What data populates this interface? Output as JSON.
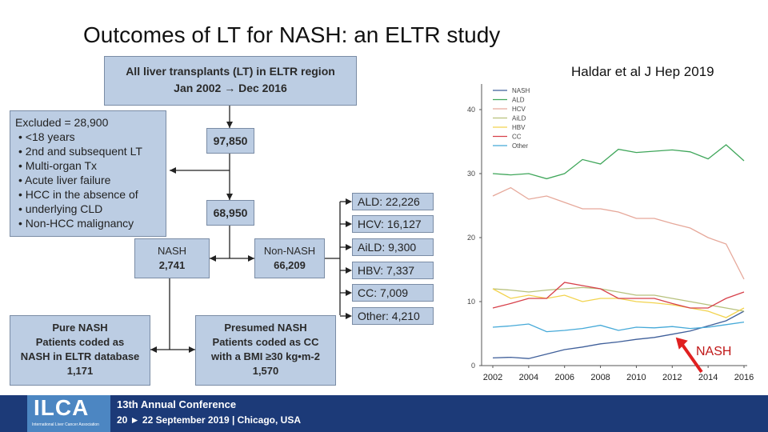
{
  "title": "Outcomes of LT for NASH: an ELTR study",
  "citation": "Haldar et al  J Hep 2019",
  "flow": {
    "top_box": [
      "All liver transplants (LT) in ELTR region",
      "Jan 2002 → Dec 2016"
    ],
    "excluded": {
      "heading": "Excluded = 28,900",
      "items": [
        "<18 years",
        "2nd and subsequent LT",
        "Multi-organ Tx",
        "Acute liver failure",
        "HCC in the absence of",
        "underlying CLD",
        "Non-HCC malignancy"
      ]
    },
    "count_1": "97,850",
    "count_2": "68,950",
    "nash_box": [
      "NASH",
      "2,741"
    ],
    "non_nash_box": [
      "Non-NASH",
      "66,209"
    ],
    "categories": [
      "ALD: 22,226",
      "HCV: 16,127",
      "AiLD: 9,300",
      "HBV: 7,337",
      "CC: 7,009",
      "Other: 4,210"
    ],
    "pure_nash_box": [
      "Pure NASH",
      "Patients coded as",
      "NASH in ELTR database",
      "1,171"
    ],
    "presumed_nash_box": [
      "Presumed NASH",
      "Patients coded as CC",
      "with a BMI ≥30 kg•m-2",
      "1,570"
    ]
  },
  "chart_data": {
    "type": "line",
    "x": [
      2002,
      2003,
      2004,
      2005,
      2006,
      2007,
      2008,
      2009,
      2010,
      2011,
      2012,
      2013,
      2014,
      2015,
      2016
    ],
    "xticks": [
      "2002",
      "2004",
      "2006",
      "2008",
      "2010",
      "2012",
      "2014",
      "2016"
    ],
    "yticks": [
      "0",
      "10",
      "20",
      "30",
      "40"
    ],
    "ylim": [
      0,
      44
    ],
    "series": [
      {
        "name": "NASH",
        "color": "#3f5f9a",
        "values": [
          1.2,
          1.3,
          1.1,
          1.8,
          2.5,
          2.9,
          3.4,
          3.7,
          4.1,
          4.4,
          4.9,
          5.4,
          6.2,
          7.0,
          8.5
        ]
      },
      {
        "name": "ALD",
        "color": "#3fa65a",
        "values": [
          30.0,
          29.8,
          30.0,
          29.2,
          30.0,
          32.2,
          31.5,
          33.8,
          33.3,
          33.5,
          33.7,
          33.4,
          32.3,
          34.5,
          32.0
        ]
      },
      {
        "name": "HCV",
        "color": "#e6a89a",
        "values": [
          26.5,
          27.8,
          26.0,
          26.5,
          25.5,
          24.5,
          24.5,
          24.0,
          23.0,
          23.0,
          22.2,
          21.5,
          20.0,
          19.0,
          13.5
        ]
      },
      {
        "name": "AiLD",
        "color": "#b7c17c",
        "values": [
          12.0,
          11.8,
          11.5,
          11.8,
          12.0,
          12.2,
          12.0,
          11.5,
          11.0,
          11.0,
          10.5,
          10.0,
          9.5,
          9.0,
          8.5
        ]
      },
      {
        "name": "HBV",
        "color": "#f2d34e",
        "values": [
          12.0,
          10.5,
          11.0,
          10.5,
          11.0,
          10.0,
          10.5,
          10.5,
          10.0,
          9.8,
          9.5,
          9.0,
          8.5,
          7.5,
          9.0
        ]
      },
      {
        "name": "CC",
        "color": "#d7404a",
        "values": [
          9.0,
          9.7,
          10.5,
          10.5,
          13.0,
          12.5,
          12.0,
          10.5,
          10.5,
          10.5,
          9.7,
          9.0,
          9.0,
          10.5,
          11.5
        ]
      },
      {
        "name": "Other",
        "color": "#45a9d8",
        "values": [
          6.0,
          6.2,
          6.5,
          5.3,
          5.5,
          5.8,
          6.3,
          5.5,
          6.0,
          5.9,
          6.1,
          5.8,
          6.0,
          6.4,
          6.8
        ]
      }
    ],
    "annotation": "NASH",
    "annotation_color": "#e02020"
  },
  "footer": {
    "logo": "ILCA",
    "logo_sub": "International Liver Cancer Association",
    "line1": "13th Annual Conference",
    "line2": "20 ► 22 September 2019 | Chicago, USA"
  }
}
